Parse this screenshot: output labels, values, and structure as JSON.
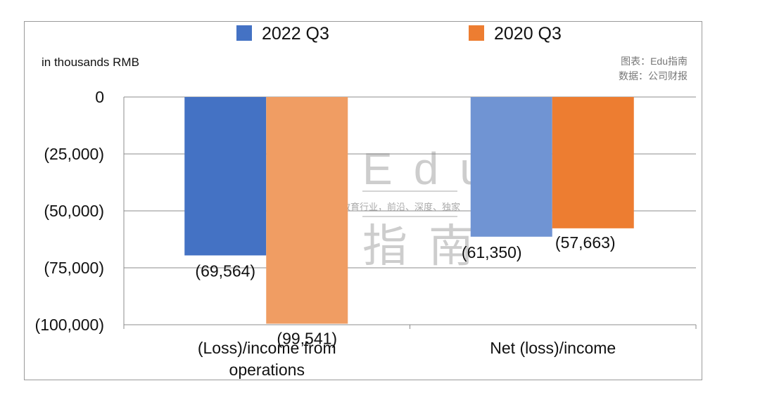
{
  "colors": {
    "series_2022_q3": [
      "#4472c4",
      "#7094d3"
    ],
    "series_2020_q3": [
      "#f09d63",
      "#ed7d31"
    ],
    "grid": "#8c8c8c"
  },
  "unit_label": "in thousands RMB",
  "source": {
    "line1": "图表：Edu指南",
    "line2": "数据：公司财报"
  },
  "watermark": {
    "top": "Edu",
    "middle": "教育行业，前沿、深度、独家",
    "bottom": "指南"
  },
  "chart_data": {
    "type": "bar",
    "categories": [
      "(Loss)/income from operations",
      "Net (loss)/income"
    ],
    "category_lines": [
      [
        "(Loss)/income from",
        "operations"
      ],
      [
        "Net (loss)/income"
      ]
    ],
    "series": [
      {
        "name": "2022 Q3",
        "values": [
          -69564,
          -61350
        ],
        "labels": [
          "(69,564)",
          "(61,350)"
        ]
      },
      {
        "name": "2020 Q3",
        "values": [
          -99541,
          -57663
        ],
        "labels": [
          "(99,541)",
          "(57,663)"
        ]
      }
    ],
    "ylabel": "in thousands RMB",
    "ylim": [
      -100000,
      0
    ],
    "yticks": [
      0,
      -25000,
      -50000,
      -75000,
      -100000
    ],
    "ytick_labels": [
      "0",
      "(25,000)",
      "(50,000)",
      "(75,000)",
      "(100,000)"
    ],
    "legend": "top",
    "grid": true
  }
}
